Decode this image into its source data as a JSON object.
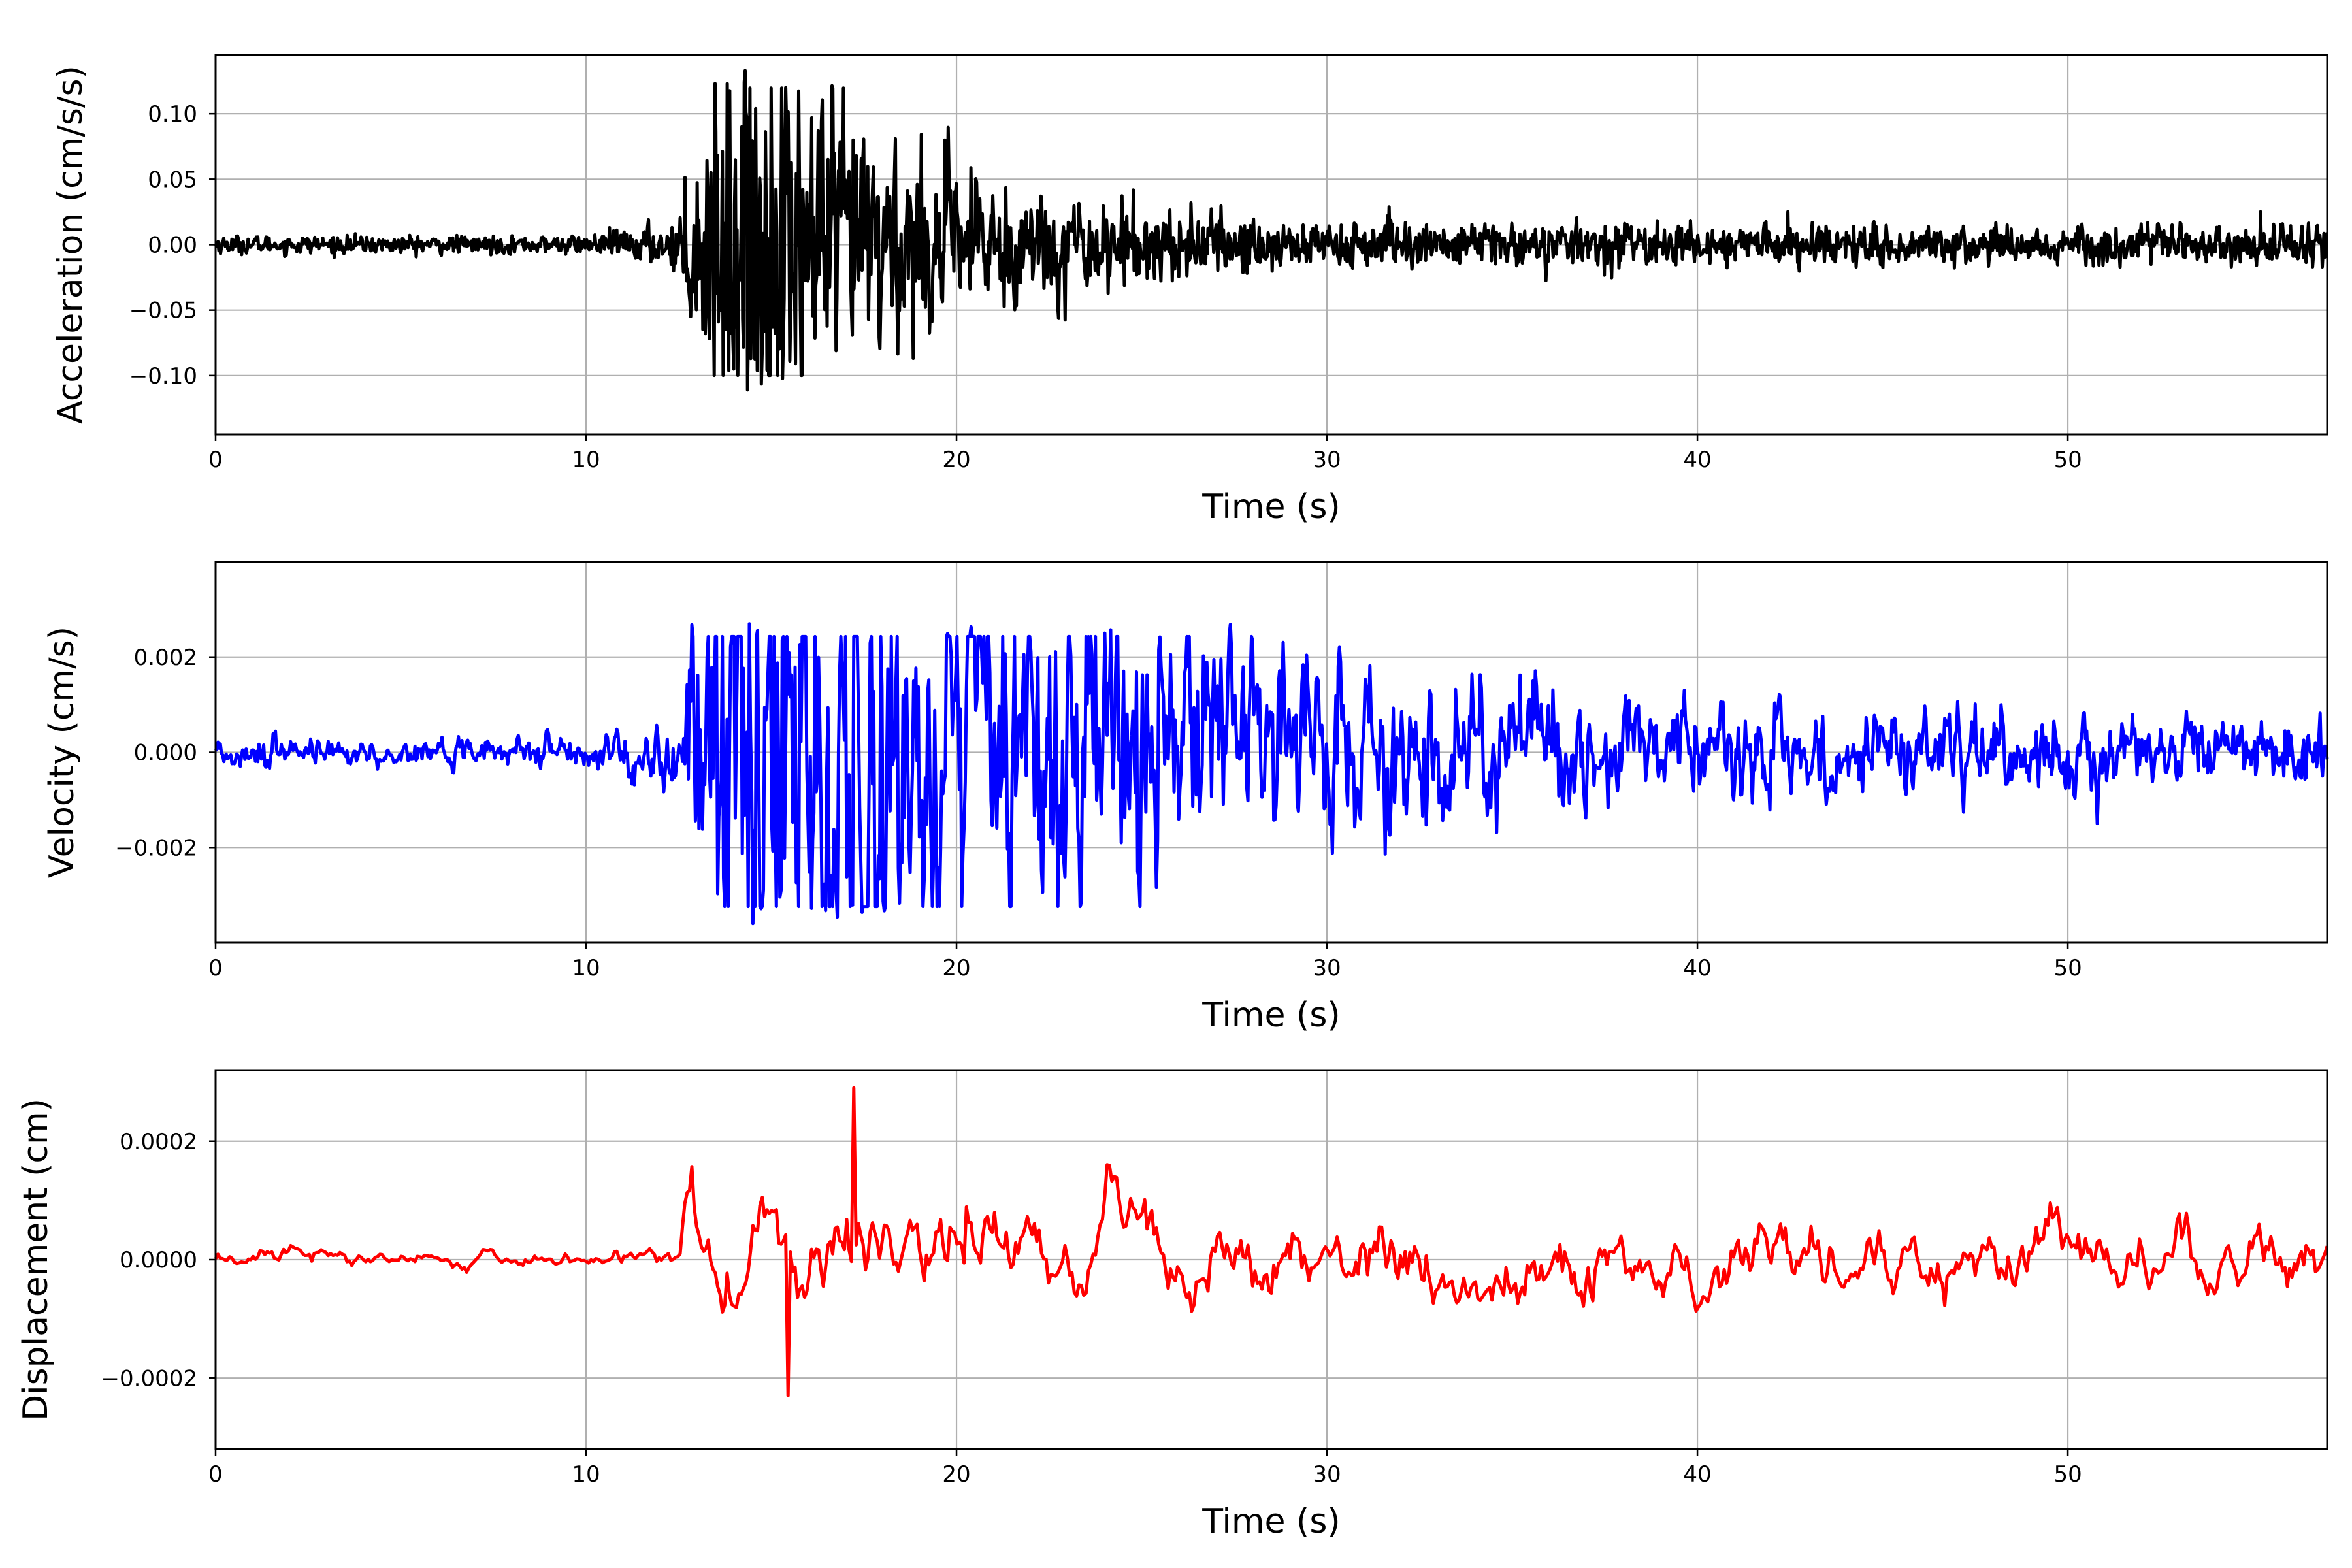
{
  "chart_data": [
    {
      "type": "line",
      "xlabel": "Time (s)",
      "ylabel": "Acceleration (cm/s/s)",
      "xlim": [
        0,
        57
      ],
      "ylim": [
        -0.145,
        0.145
      ],
      "xticks": [
        0,
        10,
        20,
        30,
        40,
        50
      ],
      "xtick_labels": [
        "0",
        "10",
        "20",
        "30",
        "40",
        "50"
      ],
      "yticks": [
        -0.1,
        -0.05,
        0.0,
        0.05,
        0.1
      ],
      "ytick_labels": [
        "−0.10",
        "−0.05",
        "0.00",
        "0.05",
        "0.10"
      ],
      "grid": true,
      "color": "#000000",
      "signal": {
        "duration": 57,
        "onset": 12.6,
        "peak_time": 14.3,
        "peak_max": 0.133,
        "peak_min": -0.111,
        "noise_level": 0.004
      }
    },
    {
      "type": "line",
      "xlabel": "Time (s)",
      "ylabel": "Velocity (cm/s)",
      "xlim": [
        0,
        57
      ],
      "ylim": [
        -0.004,
        0.004
      ],
      "xticks": [
        0,
        10,
        20,
        30,
        40,
        50
      ],
      "xtick_labels": [
        "0",
        "10",
        "20",
        "30",
        "40",
        "50"
      ],
      "yticks": [
        -0.002,
        0.0,
        0.002
      ],
      "ytick_labels": [
        "−0.002",
        "0.000",
        "0.002"
      ],
      "grid": true,
      "color": "#0000ff",
      "signal": {
        "duration": 57,
        "onset": 12.6,
        "peak_time": 14.4,
        "peak_max": 0.0027,
        "peak_min": -0.0036,
        "noise_level": 0.0002
      }
    },
    {
      "type": "line",
      "xlabel": "Time (s)",
      "ylabel": "Displacement (cm)",
      "xlim": [
        0,
        57
      ],
      "ylim": [
        -0.00032,
        0.00032
      ],
      "xticks": [
        0,
        10,
        20,
        30,
        40,
        50
      ],
      "xtick_labels": [
        "0",
        "10",
        "20",
        "30",
        "40",
        "50"
      ],
      "yticks": [
        -0.0002,
        0.0,
        0.0002
      ],
      "ytick_labels": [
        "−0.0002",
        "0.0000",
        "0.0002"
      ],
      "grid": true,
      "color": "#ff0000",
      "signal": {
        "duration": 57,
        "peak_time": 17.2,
        "peak_max": 0.00029,
        "peak_min": -0.00023,
        "noise_level": 4e-05
      }
    }
  ]
}
